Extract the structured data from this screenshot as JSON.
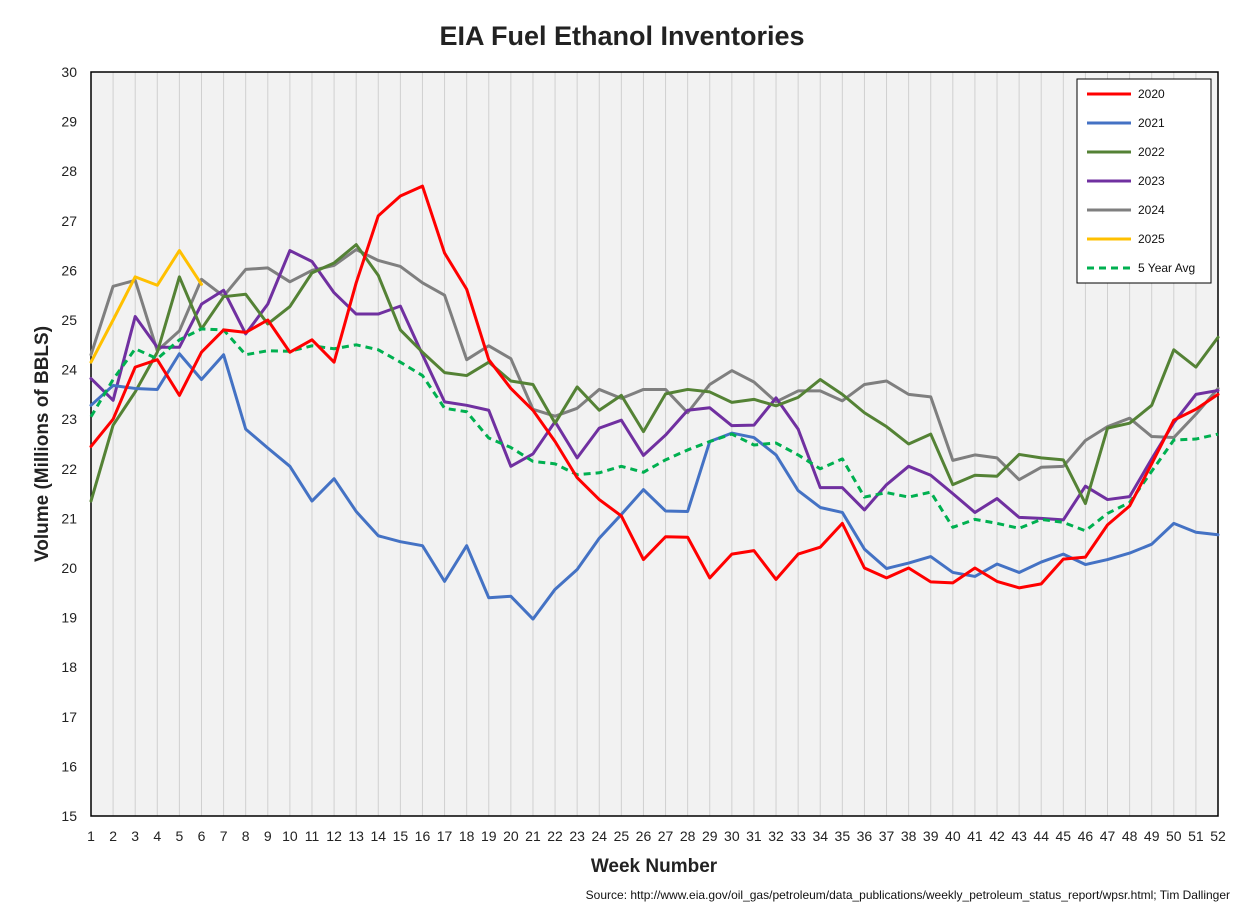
{
  "chart_data": {
    "type": "line",
    "title": "EIA Fuel Ethanol Inventories",
    "xlabel": "Week Number",
    "ylabel": "Volume (Millions of BBLS)",
    "xlim": [
      1,
      52
    ],
    "ylim": [
      15,
      30
    ],
    "yticks": [
      15,
      16,
      17,
      18,
      19,
      20,
      21,
      22,
      23,
      24,
      25,
      26,
      27,
      28,
      29,
      30
    ],
    "grid": "vertical",
    "legend_position": "top-right",
    "source": "Source: http://www.eia.gov/oil_gas/petroleum/data_publications/weekly_petroleum_status_report/wpsr.html; Tim Dallinger",
    "x": [
      1,
      2,
      3,
      4,
      5,
      6,
      7,
      8,
      9,
      10,
      11,
      12,
      13,
      14,
      15,
      16,
      17,
      18,
      19,
      20,
      21,
      22,
      23,
      24,
      25,
      26,
      27,
      28,
      29,
      30,
      31,
      32,
      33,
      34,
      35,
      36,
      37,
      38,
      39,
      40,
      41,
      42,
      43,
      44,
      45,
      46,
      47,
      48,
      49,
      50,
      51,
      52
    ],
    "series": [
      {
        "name": "2020",
        "color": "#ff0000",
        "dash": "solid",
        "values": [
          22.45,
          23.0,
          24.05,
          24.2,
          23.48,
          24.35,
          24.8,
          24.75,
          25.0,
          24.35,
          24.6,
          24.15,
          25.75,
          27.1,
          27.5,
          27.7,
          26.35,
          25.62,
          24.2,
          23.62,
          23.18,
          22.55,
          21.82,
          21.38,
          21.05,
          20.17,
          20.63,
          20.62,
          19.8,
          20.28,
          20.35,
          19.77,
          20.28,
          20.42,
          20.9,
          20.0,
          19.8,
          20.0,
          19.72,
          19.7,
          20.0,
          19.73,
          19.6,
          19.68,
          20.18,
          20.22,
          20.87,
          21.25,
          22.1,
          22.98,
          23.2,
          23.5
        ]
      },
      {
        "name": "2021",
        "color": "#4472c4",
        "dash": "solid",
        "values": [
          23.28,
          23.68,
          23.62,
          23.6,
          24.32,
          23.8,
          24.3,
          22.8,
          22.42,
          22.05,
          21.35,
          21.8,
          21.14,
          20.65,
          20.53,
          20.45,
          19.73,
          20.45,
          19.4,
          19.43,
          18.97,
          19.57,
          19.97,
          20.6,
          21.08,
          21.58,
          21.15,
          21.14,
          22.55,
          22.72,
          22.63,
          22.28,
          21.56,
          21.22,
          21.12,
          20.38,
          19.99,
          20.1,
          20.23,
          19.91,
          19.83,
          20.08,
          19.91,
          20.12,
          20.28,
          20.07,
          20.17,
          20.3,
          20.48,
          20.9,
          20.72,
          20.67
        ]
      },
      {
        "name": "2022",
        "color": "#548235",
        "dash": "solid",
        "values": [
          21.35,
          22.88,
          23.55,
          24.35,
          25.87,
          24.82,
          25.47,
          25.52,
          24.92,
          25.27,
          25.95,
          26.15,
          26.52,
          25.9,
          24.8,
          24.35,
          23.94,
          23.88,
          24.15,
          23.77,
          23.7,
          22.92,
          23.65,
          23.18,
          23.48,
          22.75,
          23.51,
          23.6,
          23.55,
          23.34,
          23.4,
          23.27,
          23.44,
          23.8,
          23.5,
          23.13,
          22.85,
          22.5,
          22.7,
          21.68,
          21.87,
          21.85,
          22.29,
          22.22,
          22.18,
          21.3,
          22.82,
          22.92,
          23.28,
          24.4,
          24.05,
          24.65
        ]
      },
      {
        "name": "2023",
        "color": "#7030a0",
        "dash": "solid",
        "values": [
          23.82,
          23.38,
          25.07,
          24.45,
          24.45,
          25.32,
          25.6,
          24.72,
          25.32,
          26.4,
          26.18,
          25.55,
          25.12,
          25.12,
          25.28,
          24.3,
          23.35,
          23.28,
          23.18,
          22.05,
          22.3,
          22.95,
          22.22,
          22.82,
          22.98,
          22.27,
          22.68,
          23.18,
          23.23,
          22.87,
          22.88,
          23.43,
          22.8,
          21.62,
          21.62,
          21.17,
          21.68,
          22.05,
          21.87,
          21.5,
          21.12,
          21.4,
          21.02,
          21.0,
          20.97,
          21.65,
          21.38,
          21.44,
          22.2,
          22.93,
          23.5,
          23.58
        ]
      },
      {
        "name": "2024",
        "color": "#7f7f7f",
        "dash": "solid",
        "values": [
          24.3,
          25.68,
          25.8,
          24.38,
          24.78,
          25.82,
          25.48,
          26.02,
          26.05,
          25.77,
          26.0,
          26.1,
          26.42,
          26.2,
          26.08,
          25.75,
          25.5,
          24.2,
          24.48,
          24.22,
          23.2,
          23.06,
          23.22,
          23.6,
          23.42,
          23.6,
          23.6,
          23.13,
          23.7,
          23.98,
          23.75,
          23.35,
          23.57,
          23.57,
          23.37,
          23.7,
          23.77,
          23.5,
          23.45,
          22.17,
          22.28,
          22.22,
          21.78,
          22.03,
          22.05,
          22.57,
          22.85,
          23.02,
          22.65,
          22.63,
          23.1,
          23.62
        ]
      },
      {
        "name": "2025",
        "color": "#ffc000",
        "dash": "solid",
        "values": [
          24.15,
          25.0,
          25.87,
          25.7,
          26.4,
          25.72,
          null,
          null,
          null,
          null,
          null,
          null,
          null,
          null,
          null,
          null,
          null,
          null,
          null,
          null,
          null,
          null,
          null,
          null,
          null,
          null,
          null,
          null,
          null,
          null,
          null,
          null,
          null,
          null,
          null,
          null,
          null,
          null,
          null,
          null,
          null,
          null,
          null,
          null,
          null,
          null,
          null,
          null,
          null,
          null,
          null,
          null
        ]
      },
      {
        "name": "5 Year Avg",
        "color": "#00b050",
        "dash": "dashed",
        "values": [
          23.05,
          23.8,
          24.42,
          24.22,
          24.6,
          24.82,
          24.8,
          24.3,
          24.38,
          24.37,
          24.48,
          24.42,
          24.5,
          24.4,
          24.15,
          23.88,
          23.22,
          23.15,
          22.62,
          22.43,
          22.15,
          22.1,
          21.88,
          21.92,
          22.05,
          21.93,
          22.18,
          22.38,
          22.55,
          22.7,
          22.48,
          22.52,
          22.28,
          22.0,
          22.2,
          21.43,
          21.52,
          21.43,
          21.53,
          20.82,
          20.98,
          20.9,
          20.8,
          20.98,
          20.92,
          20.75,
          21.1,
          21.32,
          21.95,
          22.58,
          22.6,
          22.7
        ]
      }
    ]
  }
}
